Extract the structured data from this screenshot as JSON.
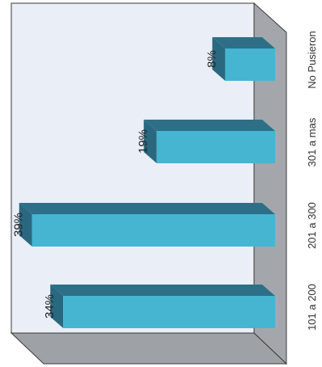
{
  "chart_data": {
    "type": "bar",
    "orientation": "horizontal-3d",
    "categories": [
      "101 a 200",
      "201 a 300",
      "301 a mas",
      "No Pusieron"
    ],
    "values": [
      34,
      39,
      19,
      8
    ],
    "value_labels": [
      "34%",
      "39%",
      "19%",
      "8%"
    ],
    "title": "",
    "xlabel": "",
    "ylabel": "",
    "xlim": [
      0,
      40
    ],
    "grid": false,
    "legend": "none",
    "colors": {
      "bar_front": "#45b5d2",
      "bar_top": "#2d6f87",
      "bar_side": "#2a6880",
      "back_wall": "#e9eef7",
      "right_wall": "#a3a7ab",
      "floor": "#9ea2a6",
      "wall_edge": "#3a3a3a"
    }
  }
}
